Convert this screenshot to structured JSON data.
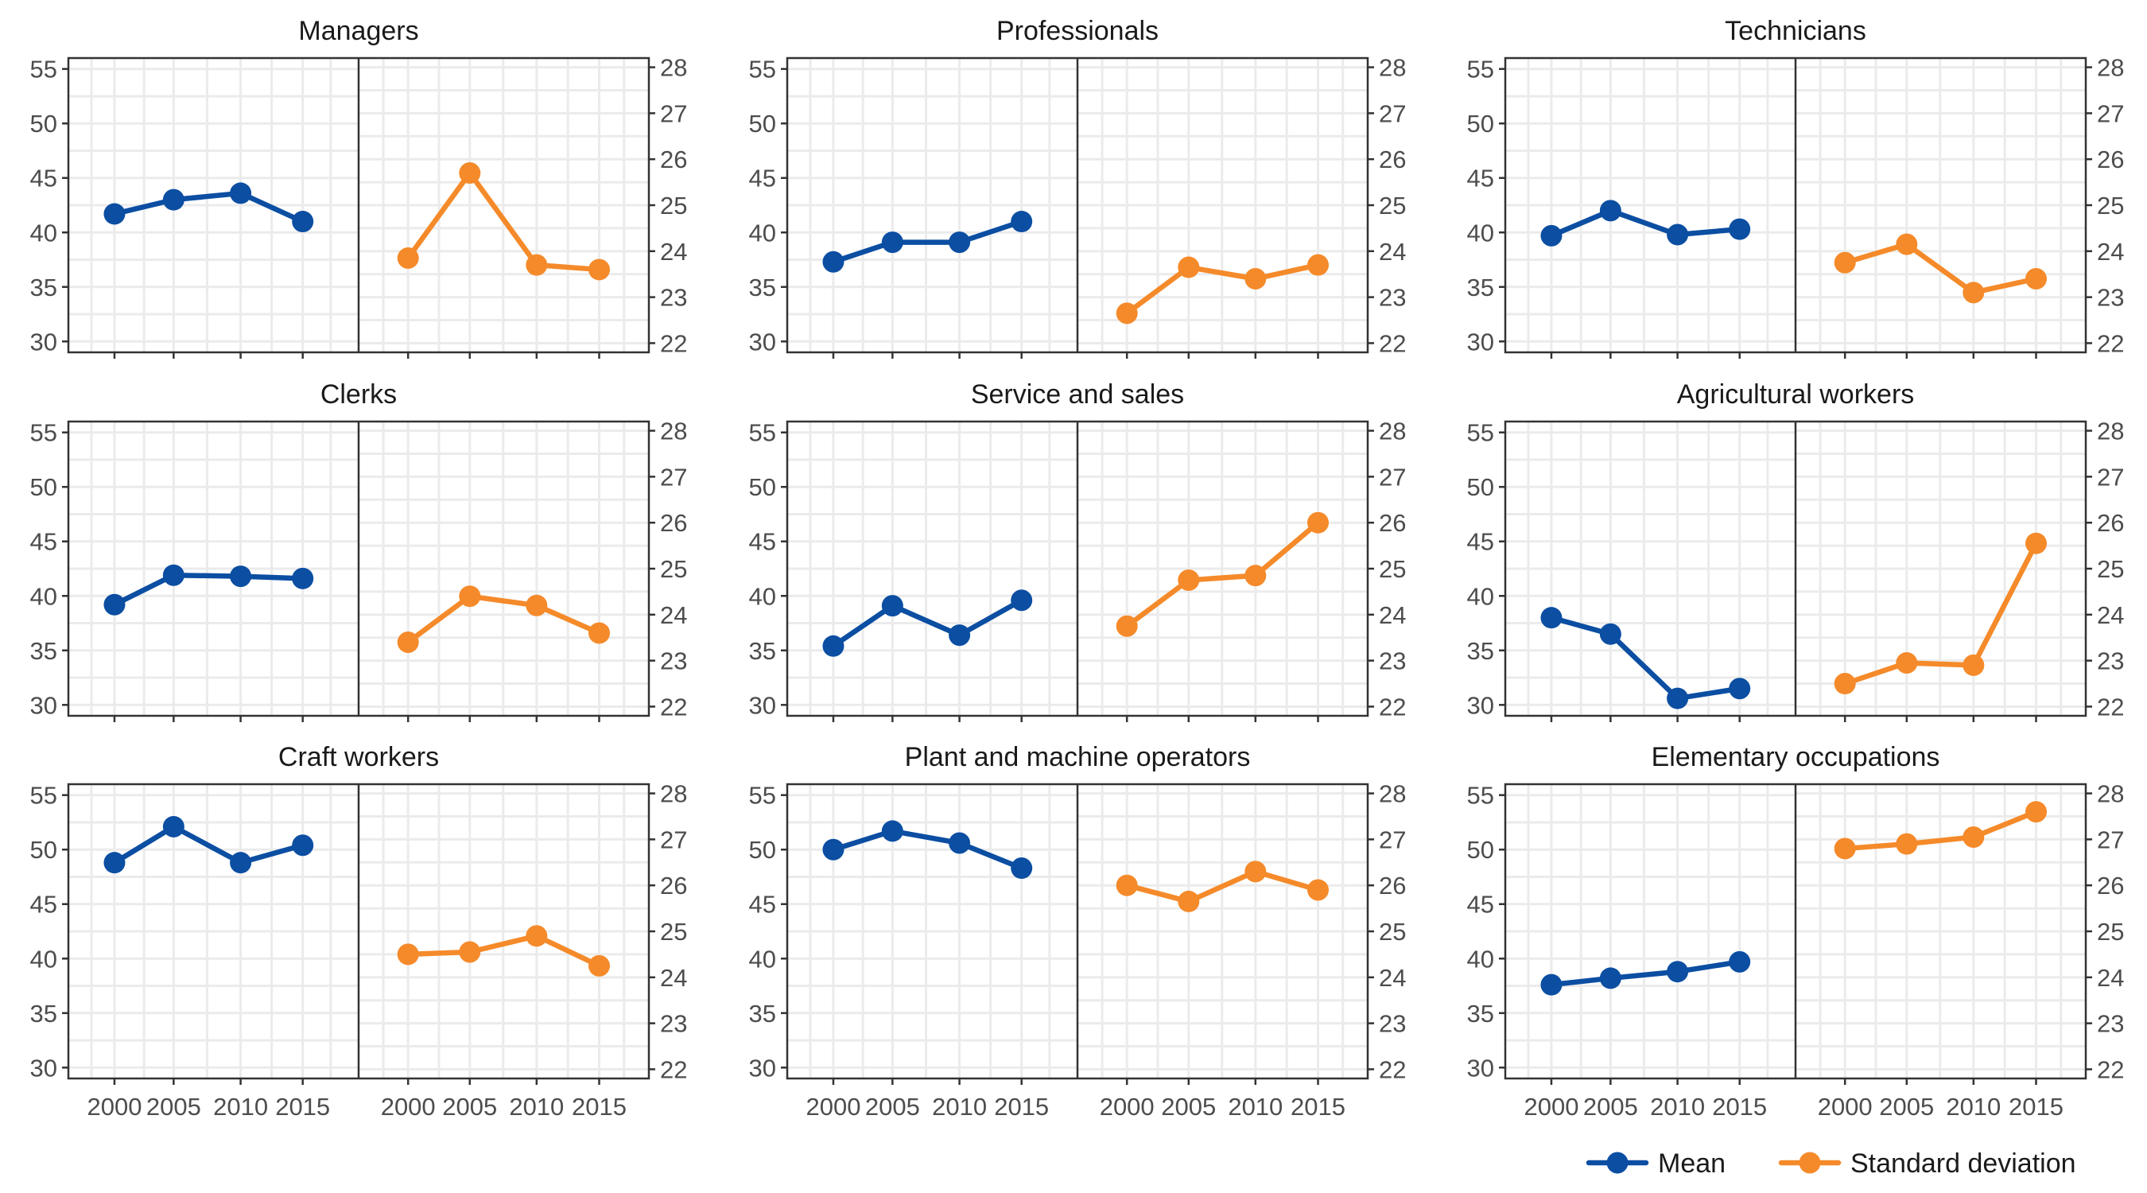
{
  "chart_data": {
    "type": "line",
    "layout": "3x3 facet grid, each facet split into two sub-panels: left = Mean (left axis), right = Standard deviation (right axis)",
    "x_ticks": [
      "2000",
      "2005",
      "2010",
      "2015"
    ],
    "left_axis": {
      "ylim": [
        29,
        56
      ],
      "ticks": [
        "30",
        "35",
        "40",
        "45",
        "50",
        "55"
      ]
    },
    "right_axis": {
      "ylim": [
        21.8,
        28.2
      ],
      "ticks": [
        "22",
        "23",
        "24",
        "25",
        "26",
        "27",
        "28"
      ]
    },
    "grid": true,
    "legend": {
      "placement": "bottom-right",
      "items": [
        {
          "label": "Mean",
          "color": "#0b4ea2"
        },
        {
          "label": "Standard deviation",
          "color": "#f58a2a"
        }
      ]
    },
    "colors": {
      "mean": "#0b4ea2",
      "sd": "#f58a2a"
    },
    "facets": [
      {
        "title": "Managers",
        "mean": [
          41.7,
          43.0,
          43.6,
          41.0
        ],
        "sd": [
          23.85,
          25.7,
          23.7,
          23.6
        ]
      },
      {
        "title": "Professionals",
        "mean": [
          37.3,
          39.1,
          39.1,
          41.0
        ],
        "sd": [
          22.65,
          23.65,
          23.4,
          23.7
        ]
      },
      {
        "title": "Technicians",
        "mean": [
          39.7,
          42.0,
          39.8,
          40.3
        ],
        "sd": [
          23.75,
          24.15,
          23.1,
          23.4
        ]
      },
      {
        "title": "Clerks",
        "mean": [
          39.2,
          41.9,
          41.8,
          41.6
        ],
        "sd": [
          23.4,
          24.4,
          24.2,
          23.6
        ]
      },
      {
        "title": "Service and sales",
        "mean": [
          35.4,
          39.1,
          36.4,
          39.6
        ],
        "sd": [
          23.75,
          24.75,
          24.85,
          26.0
        ]
      },
      {
        "title": "Agricultural workers",
        "mean": [
          38.0,
          36.5,
          30.6,
          31.5
        ],
        "sd": [
          22.5,
          22.95,
          22.9,
          25.55
        ]
      },
      {
        "title": "Craft workers",
        "mean": [
          48.8,
          52.1,
          48.8,
          50.4
        ],
        "sd": [
          24.5,
          24.55,
          24.9,
          24.25
        ]
      },
      {
        "title": "Plant and machine operators",
        "mean": [
          50.0,
          51.7,
          50.6,
          48.3
        ],
        "sd": [
          26.0,
          25.65,
          26.3,
          25.9
        ]
      },
      {
        "title": "Elementary occupations",
        "mean": [
          37.6,
          38.2,
          38.8,
          39.7
        ],
        "sd": [
          26.8,
          26.9,
          27.05,
          27.6
        ]
      }
    ]
  }
}
